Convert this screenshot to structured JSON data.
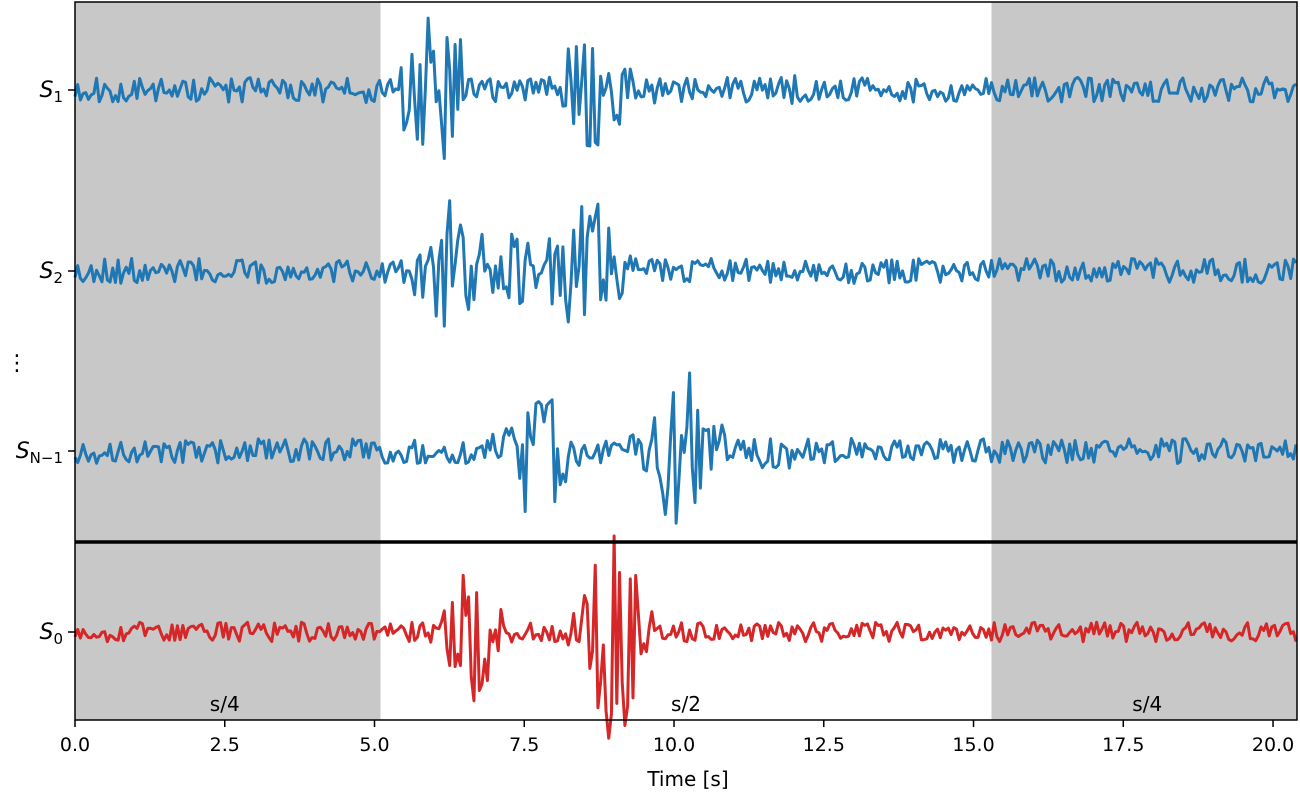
{
  "chart_data": {
    "type": "line",
    "xlabel": "Time [s]",
    "xlim": [
      0,
      20.4
    ],
    "xticks": [
      0.0,
      2.5,
      5.0,
      7.5,
      10.0,
      12.5,
      15.0,
      17.5,
      20.0
    ],
    "xtick_labels": [
      "0.0",
      "2.5",
      "5.0",
      "7.5",
      "10.0",
      "12.5",
      "15.0",
      "17.5",
      "20.0"
    ],
    "shaded_regions": [
      {
        "x0": 0.0,
        "x1": 5.1,
        "color": "#c8c8c8"
      },
      {
        "x0": 15.3,
        "x1": 20.4,
        "color": "#c8c8c8"
      }
    ],
    "annotations": [
      {
        "text": "s/4",
        "x": 2.5
      },
      {
        "text": "s/2",
        "x": 10.2
      },
      {
        "text": "s/4",
        "x": 17.9
      }
    ],
    "vertical_ellipsis": "⋮",
    "series": [
      {
        "label_main": "S",
        "label_sub": "1",
        "color": "#1f77b4",
        "panel": "top",
        "offset": 3,
        "noise": 0.09,
        "seed": 11,
        "bursts": [
          {
            "t": 6.0,
            "w": 0.5,
            "a": 0.55
          },
          {
            "t": 8.6,
            "w": 0.55,
            "a": 0.45
          },
          {
            "t": 12.0,
            "w": 0.15,
            "a": 0.08
          }
        ]
      },
      {
        "label_main": "S",
        "label_sub": "2",
        "color": "#1f77b4",
        "panel": "top",
        "offset": 2,
        "noise": 0.09,
        "seed": 23,
        "bursts": [
          {
            "t": 6.3,
            "w": 0.5,
            "a": 0.45
          },
          {
            "t": 8.5,
            "w": 0.55,
            "a": 0.5
          },
          {
            "t": 7.3,
            "w": 0.4,
            "a": 0.25
          }
        ]
      },
      {
        "label_main": "S",
        "label_sub": "N−1",
        "color": "#1f77b4",
        "panel": "top",
        "offset": 1,
        "noise": 0.09,
        "seed": 37,
        "bursts": [
          {
            "t": 7.7,
            "w": 0.55,
            "a": 0.42
          },
          {
            "t": 10.1,
            "w": 0.65,
            "a": 0.48
          },
          {
            "t": 11.7,
            "w": 0.3,
            "a": 0.2
          }
        ]
      },
      {
        "label_main": "S",
        "label_sub": "0",
        "color": "#d62728",
        "panel": "bottom",
        "offset": 0,
        "noise": 0.07,
        "seed": 53,
        "bursts": [
          {
            "t": 6.6,
            "w": 0.42,
            "a": 0.55
          },
          {
            "t": 9.0,
            "w": 0.45,
            "a": 0.75
          }
        ]
      }
    ]
  }
}
